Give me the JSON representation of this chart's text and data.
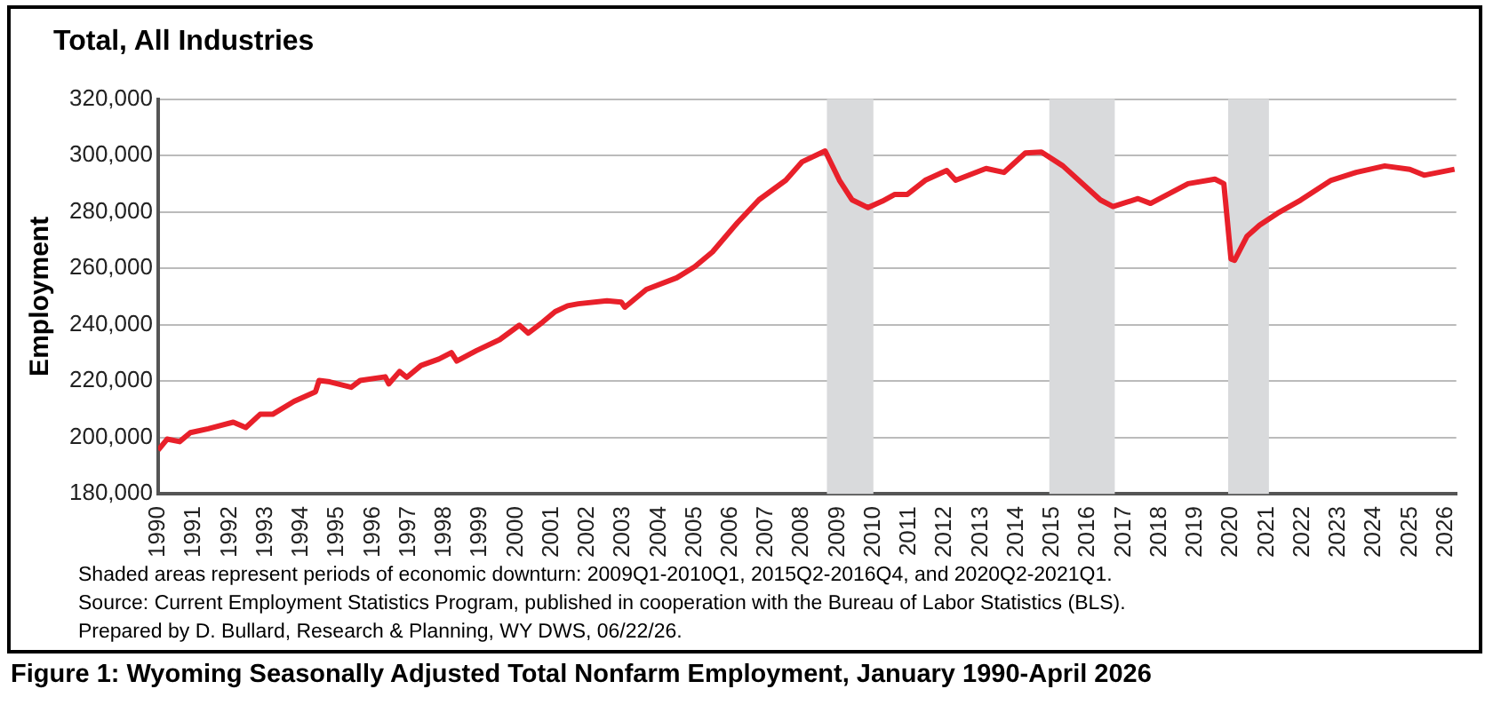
{
  "chart_data": {
    "type": "line",
    "title": "Total, All Industries",
    "ylabel": "Employment",
    "annotations": [
      "Shaded areas represent periods of economic downturn: 2009Q1-2010Q1, 2015Q2-2016Q4, and 2020Q2-2021Q1.",
      "Source: Current Employment Statistics Program, published in cooperation with the Bureau of Labor Statistics (BLS).",
      "Prepared by D. Bullard, Research & Planning, WY DWS, 06/22/26.",
      "Figure 1: Wyoming Seasonally Adjusted Total Nonfarm Employment, January 1990-April 2026"
    ],
    "series": [
      {
        "color": "#e8202a",
        "x": [
          1990.0,
          1990.25,
          1990.6,
          1990.9,
          1991.4,
          1992.1,
          1992.45,
          1992.85,
          1993.2,
          1993.8,
          1994.4,
          1994.5,
          1994.8,
          1995.4,
          1995.65,
          1996.35,
          1996.45,
          1996.75,
          1996.95,
          1997.35,
          1997.85,
          1998.2,
          1998.35,
          1998.9,
          1999.55,
          2000.1,
          2000.35,
          2000.75,
          2001.1,
          2001.45,
          2001.75,
          2002.55,
          2002.95,
          2003.05,
          2003.65,
          2004.5,
          2005.0,
          2005.5,
          2006.2,
          2006.8,
          2007.55,
          2008.0,
          2008.65,
          2009.05,
          2009.4,
          2009.85,
          2010.25,
          2010.6,
          2010.95,
          2011.45,
          2012.05,
          2012.3,
          2013.15,
          2013.65,
          2014.25,
          2014.7,
          2015.3,
          2016.35,
          2016.7,
          2017.4,
          2017.75,
          2018.8,
          2019.55,
          2019.8,
          2020.0,
          2020.1,
          2020.45,
          2020.8,
          2021.3,
          2021.95,
          2022.8,
          2023.5,
          2024.3,
          2025.0,
          2025.4,
          2026.25
        ],
        "values": [
          195500,
          199400,
          198500,
          201700,
          203100,
          205400,
          203500,
          208200,
          208200,
          212800,
          216200,
          220200,
          219700,
          217800,
          220200,
          221500,
          219000,
          223400,
          221300,
          225500,
          227800,
          230100,
          227100,
          230800,
          234700,
          239800,
          237000,
          240900,
          244600,
          246700,
          247400,
          248500,
          248000,
          246200,
          252500,
          256600,
          260500,
          265800,
          276200,
          284300,
          291200,
          297700,
          301600,
          291200,
          284300,
          281500,
          283800,
          286200,
          286200,
          291200,
          294700,
          291200,
          295400,
          294000,
          300900,
          301200,
          296300,
          284200,
          281900,
          284700,
          283000,
          290000,
          291600,
          290000,
          263300,
          262800,
          271400,
          275300,
          279500,
          284200,
          291200,
          294000,
          296300,
          295100,
          293000,
          295100
        ]
      }
    ],
    "xlim": [
      1990,
      2026.3
    ],
    "xticks": [
      1990,
      1991,
      1992,
      1993,
      1994,
      1995,
      1996,
      1997,
      1998,
      1999,
      2000,
      2001,
      2002,
      2003,
      2004,
      2005,
      2006,
      2007,
      2008,
      2009,
      2010,
      2011,
      2012,
      2013,
      2014,
      2015,
      2016,
      2017,
      2018,
      2019,
      2020,
      2021,
      2022,
      2023,
      2024,
      2025,
      2026
    ],
    "ylim": [
      180000,
      320000
    ],
    "yticks": [
      {
        "value": 180000,
        "label": "180,000"
      },
      {
        "value": 200000,
        "label": "200,000"
      },
      {
        "value": 220000,
        "label": "220,000"
      },
      {
        "value": 240000,
        "label": "240,000"
      },
      {
        "value": 260000,
        "label": "260,000"
      },
      {
        "value": 280000,
        "label": "280,000"
      },
      {
        "value": 300000,
        "label": "300,000"
      },
      {
        "value": 320000,
        "label": "320,000"
      }
    ],
    "bands": [
      {
        "axis": "x",
        "from": 2008.7,
        "to": 2010.0,
        "color": "#d9dadc"
      },
      {
        "axis": "x",
        "from": 2014.92,
        "to": 2016.75,
        "color": "#d9dadc"
      },
      {
        "axis": "x",
        "from": 2019.92,
        "to": 2021.06,
        "color": "#d9dadc"
      }
    ],
    "grid": "y",
    "legend": false,
    "marker": "none",
    "line_style": "solid"
  }
}
